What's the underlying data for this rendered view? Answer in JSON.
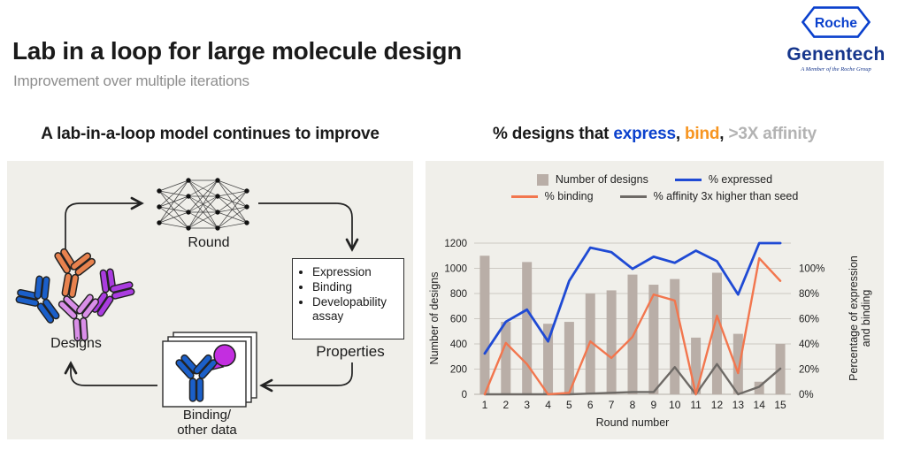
{
  "slide": {
    "title": "Lab in a loop for large molecule design",
    "subtitle": "Improvement over multiple iterations"
  },
  "logo": {
    "roche": "Roche",
    "genentech": "Genentech",
    "tagline": "A Member of the Roche Group",
    "roche_blue": "#0b41cd",
    "genentech_blue": "#16368c"
  },
  "left": {
    "heading": "A lab-in-a-loop model continues to improve",
    "diagram": {
      "round_label": "Round",
      "designs_label": "Designs",
      "properties_label": "Properties",
      "properties_items": [
        "Expression",
        "Binding",
        "Developability assay"
      ],
      "binding_label_line1": "Binding/",
      "binding_label_line2": "other data",
      "antibody_colors": {
        "orange": "#e8824e",
        "blue": "#1b5fc9",
        "purple": "#aa3ce0",
        "orchid": "#d98fe8",
        "antigen": "#c32ee0"
      }
    }
  },
  "right": {
    "heading": {
      "part1": "% designs that ",
      "express": "express",
      "sep1": ", ",
      "bind": "bind",
      "sep2": ", ",
      "affinity": ">3X affinity",
      "express_color": "#0b41cd",
      "bind_color": "#f79520",
      "affinity_color": "#b3b3b3"
    }
  },
  "chart_data": {
    "type": "bar+line",
    "title": "% designs that express, bind, >3X affinity",
    "categories": [
      "1",
      "2",
      "3",
      "4",
      "5",
      "6",
      "7",
      "8",
      "9",
      "10",
      "11",
      "12",
      "13",
      "14",
      "15"
    ],
    "xlabel": "Round number",
    "ylabel_left": "Number of designs",
    "ylabel_right_line1": "Percentage of expression",
    "ylabel_right_line2": "and binding",
    "ylim_left": [
      0,
      1200
    ],
    "ylim_right_pct": [
      0,
      100
    ],
    "yticks_left": [
      0,
      200,
      400,
      600,
      800,
      1000,
      1200
    ],
    "yticks_right": [
      "0%",
      "20%",
      "40%",
      "60%",
      "80%",
      "100%"
    ],
    "grid": true,
    "legend_position": "top",
    "bars": {
      "name": "Number of designs",
      "color": "#b9aea7",
      "values": [
        1100,
        575,
        1050,
        560,
        575,
        800,
        825,
        950,
        870,
        915,
        450,
        965,
        480,
        100,
        400
      ]
    },
    "series": [
      {
        "name": "% expressed",
        "color": "#1f4ad4",
        "axis": "right",
        "values": [
          27,
          48,
          56,
          35,
          75,
          97,
          94,
          83,
          91,
          87,
          95,
          88,
          66,
          100,
          100
        ]
      },
      {
        "name": "% binding",
        "color": "#f2764e",
        "axis": "right",
        "values": [
          0,
          34,
          20,
          0,
          1,
          35,
          24,
          38,
          66,
          62,
          0,
          52,
          14,
          90,
          75
        ]
      },
      {
        "name": "% affinity 3x higher than seed",
        "color": "#6e6a66",
        "axis": "right",
        "values": [
          0,
          0,
          0,
          0,
          0,
          0.5,
          1,
          1.5,
          1.5,
          18,
          0,
          20,
          0,
          5,
          17
        ]
      }
    ],
    "legend": [
      {
        "label": "Number of designs",
        "swatch": "square",
        "color": "#b9aea7"
      },
      {
        "label": "% expressed",
        "swatch": "line",
        "color": "#1f4ad4"
      },
      {
        "label": "% binding",
        "swatch": "line",
        "color": "#f2764e"
      },
      {
        "label": "% affinity 3x higher than seed",
        "swatch": "line",
        "color": "#6e6a66"
      }
    ],
    "colors": {
      "grid": "#cdc9c3",
      "axis_text": "#222222",
      "panel_bg": "#f0efea"
    }
  }
}
